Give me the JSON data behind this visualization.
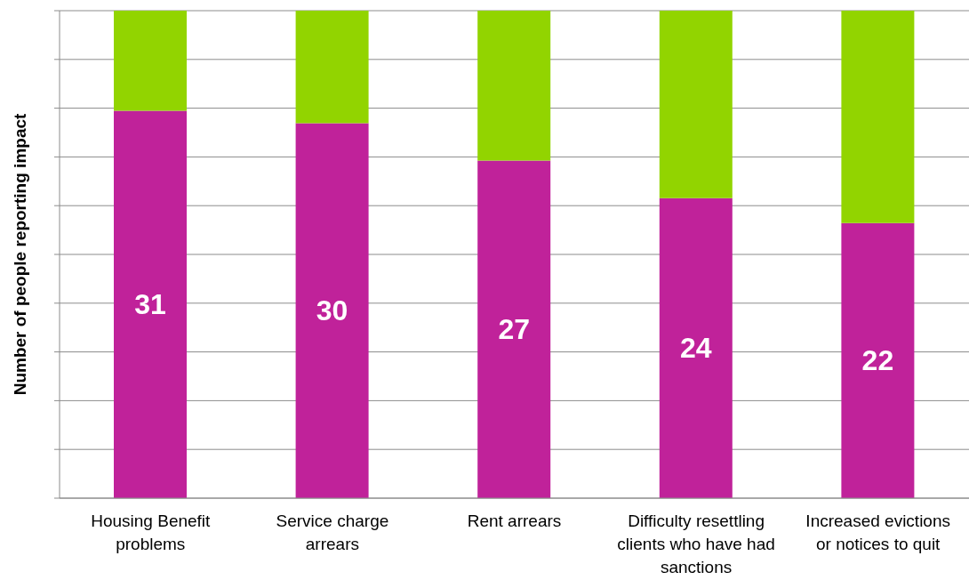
{
  "chart_data": {
    "type": "bar",
    "ylabel": "Number of people reporting impact",
    "categories": [
      "Housing Benefit problems",
      "Service charge arrears",
      "Rent arrears",
      "Difficulty resettling clients who have had sanctions",
      "Increased evictions or notices to quit"
    ],
    "stacked": true,
    "series": [
      {
        "color": "#c0229a",
        "values": [
          31,
          30,
          27,
          24,
          22
        ],
        "value_labels": [
          "31",
          "30",
          "27",
          "24",
          "22"
        ]
      },
      {
        "color": "#92d400",
        "values": [
          8,
          9,
          12,
          15,
          17
        ]
      }
    ],
    "grid": "y",
    "legend": false,
    "tick_labels": "x"
  }
}
